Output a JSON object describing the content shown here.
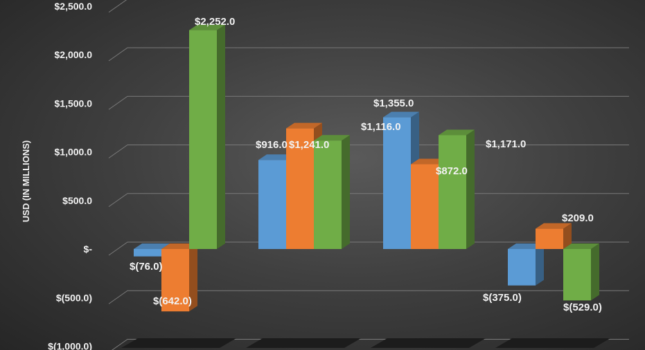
{
  "chart_data": {
    "type": "bar",
    "ylabel": "USD (IN MILLIONS)",
    "ylim": [
      -1000,
      2500
    ],
    "y_ticks": [
      2500,
      2000,
      1500,
      1000,
      500,
      0,
      -500,
      -1000
    ],
    "y_tick_labels": [
      "$2,500.0",
      "$2,000.0",
      "$1,500.0",
      "$1,000.0",
      "$500.0",
      "$-",
      "$(500.0)",
      "$(1,000.0)"
    ],
    "grid": true,
    "style": "3d-clustered-column",
    "categories": [
      "",
      "",
      "",
      ""
    ],
    "series": [
      {
        "color": "#5b9bd5",
        "values": [
          -76,
          916,
          1355,
          -375
        ],
        "labels": [
          "$(76.0)",
          "$916.0",
          "$1,355.0",
          "$(375.0)"
        ]
      },
      {
        "color": "#ed7d31",
        "values": [
          -642,
          1241,
          872,
          209
        ],
        "labels": [
          "$(642.0)",
          "$1,241.0",
          "$872.0",
          "$209.0"
        ]
      },
      {
        "color": "#70ad47",
        "values": [
          2252,
          1116,
          1171,
          -529
        ],
        "labels": [
          "$2,252.0",
          "$1,116.0",
          "$1,171.0",
          "$(529.0)"
        ]
      }
    ]
  }
}
